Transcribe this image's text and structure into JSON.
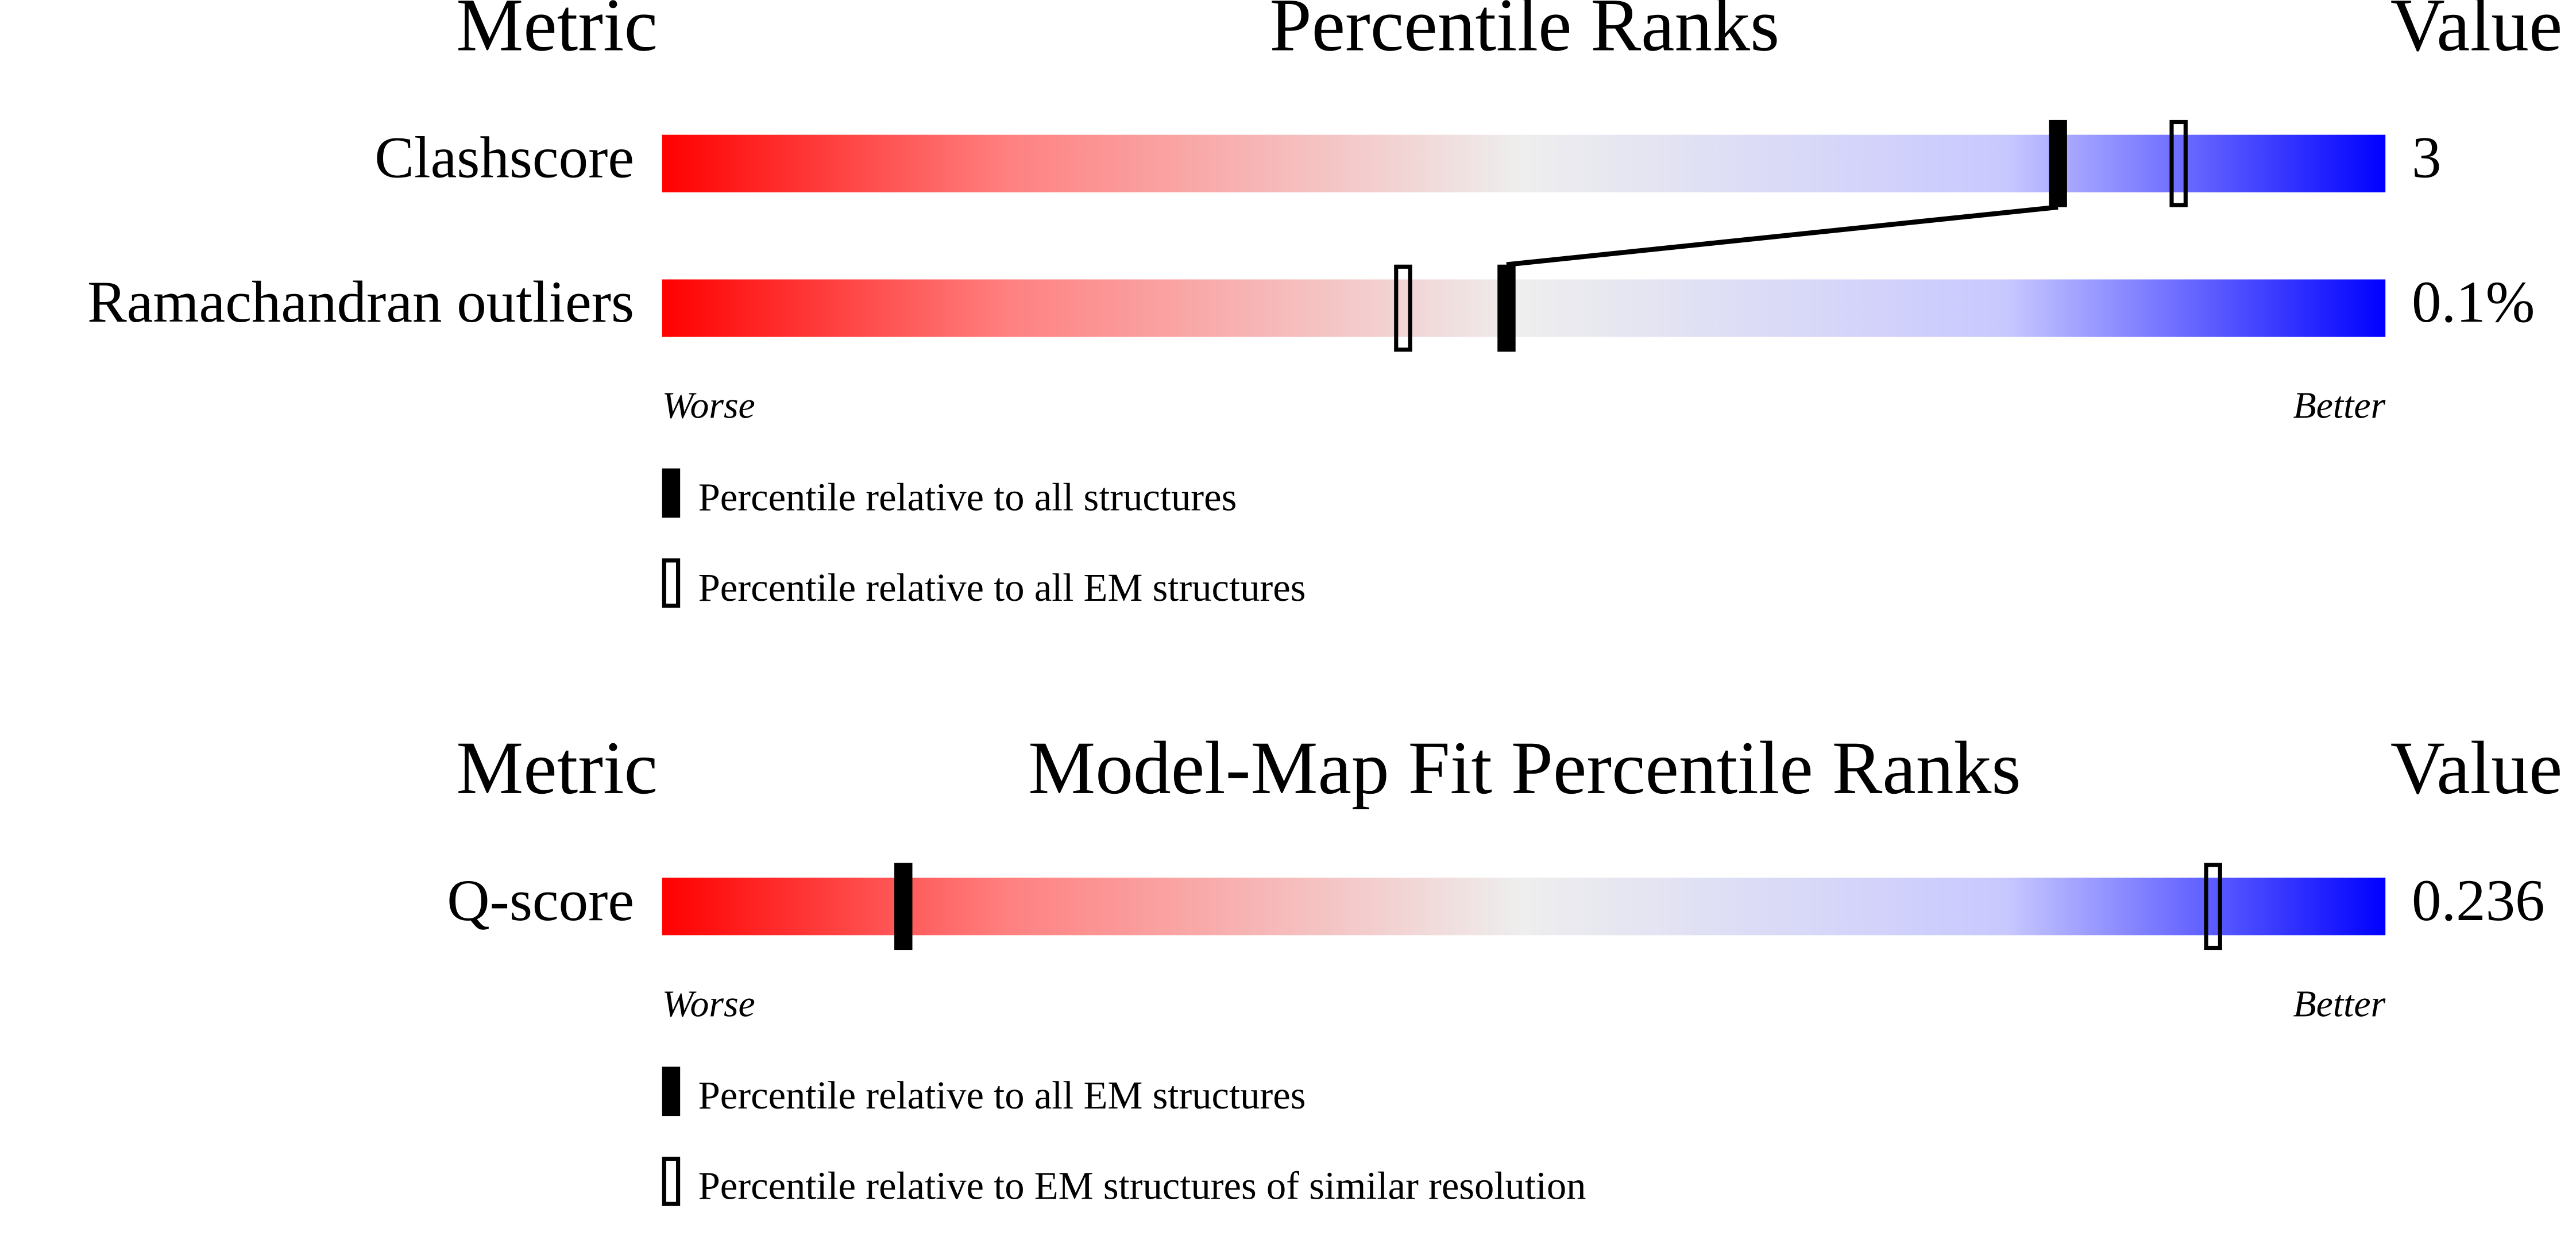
{
  "panels": [
    {
      "header": {
        "metric": "Metric",
        "title": "Percentile Ranks",
        "value": "Value"
      },
      "metrics": [
        {
          "name": "Clashscore",
          "value": "3",
          "percentile_filled": 81,
          "percentile_open": 88
        },
        {
          "name": "Ramachandran outliers",
          "value": "0.1%",
          "percentile_filled": 49,
          "percentile_open": 43
        }
      ],
      "scale": {
        "worse": "Worse",
        "better": "Better"
      },
      "legend": {
        "filled": "Percentile relative to all structures",
        "open": "Percentile relative to all EM structures"
      }
    },
    {
      "header": {
        "metric": "Metric",
        "title": "Model-Map Fit Percentile Ranks",
        "value": "Value"
      },
      "metrics": [
        {
          "name": "Q-score",
          "value": "0.236",
          "percentile_filled": 14,
          "percentile_open": 90
        }
      ],
      "scale": {
        "worse": "Worse",
        "better": "Better"
      },
      "legend": {
        "filled": "Percentile relative to all EM structures",
        "open": "Percentile relative to EM structures of similar resolution"
      }
    }
  ]
}
